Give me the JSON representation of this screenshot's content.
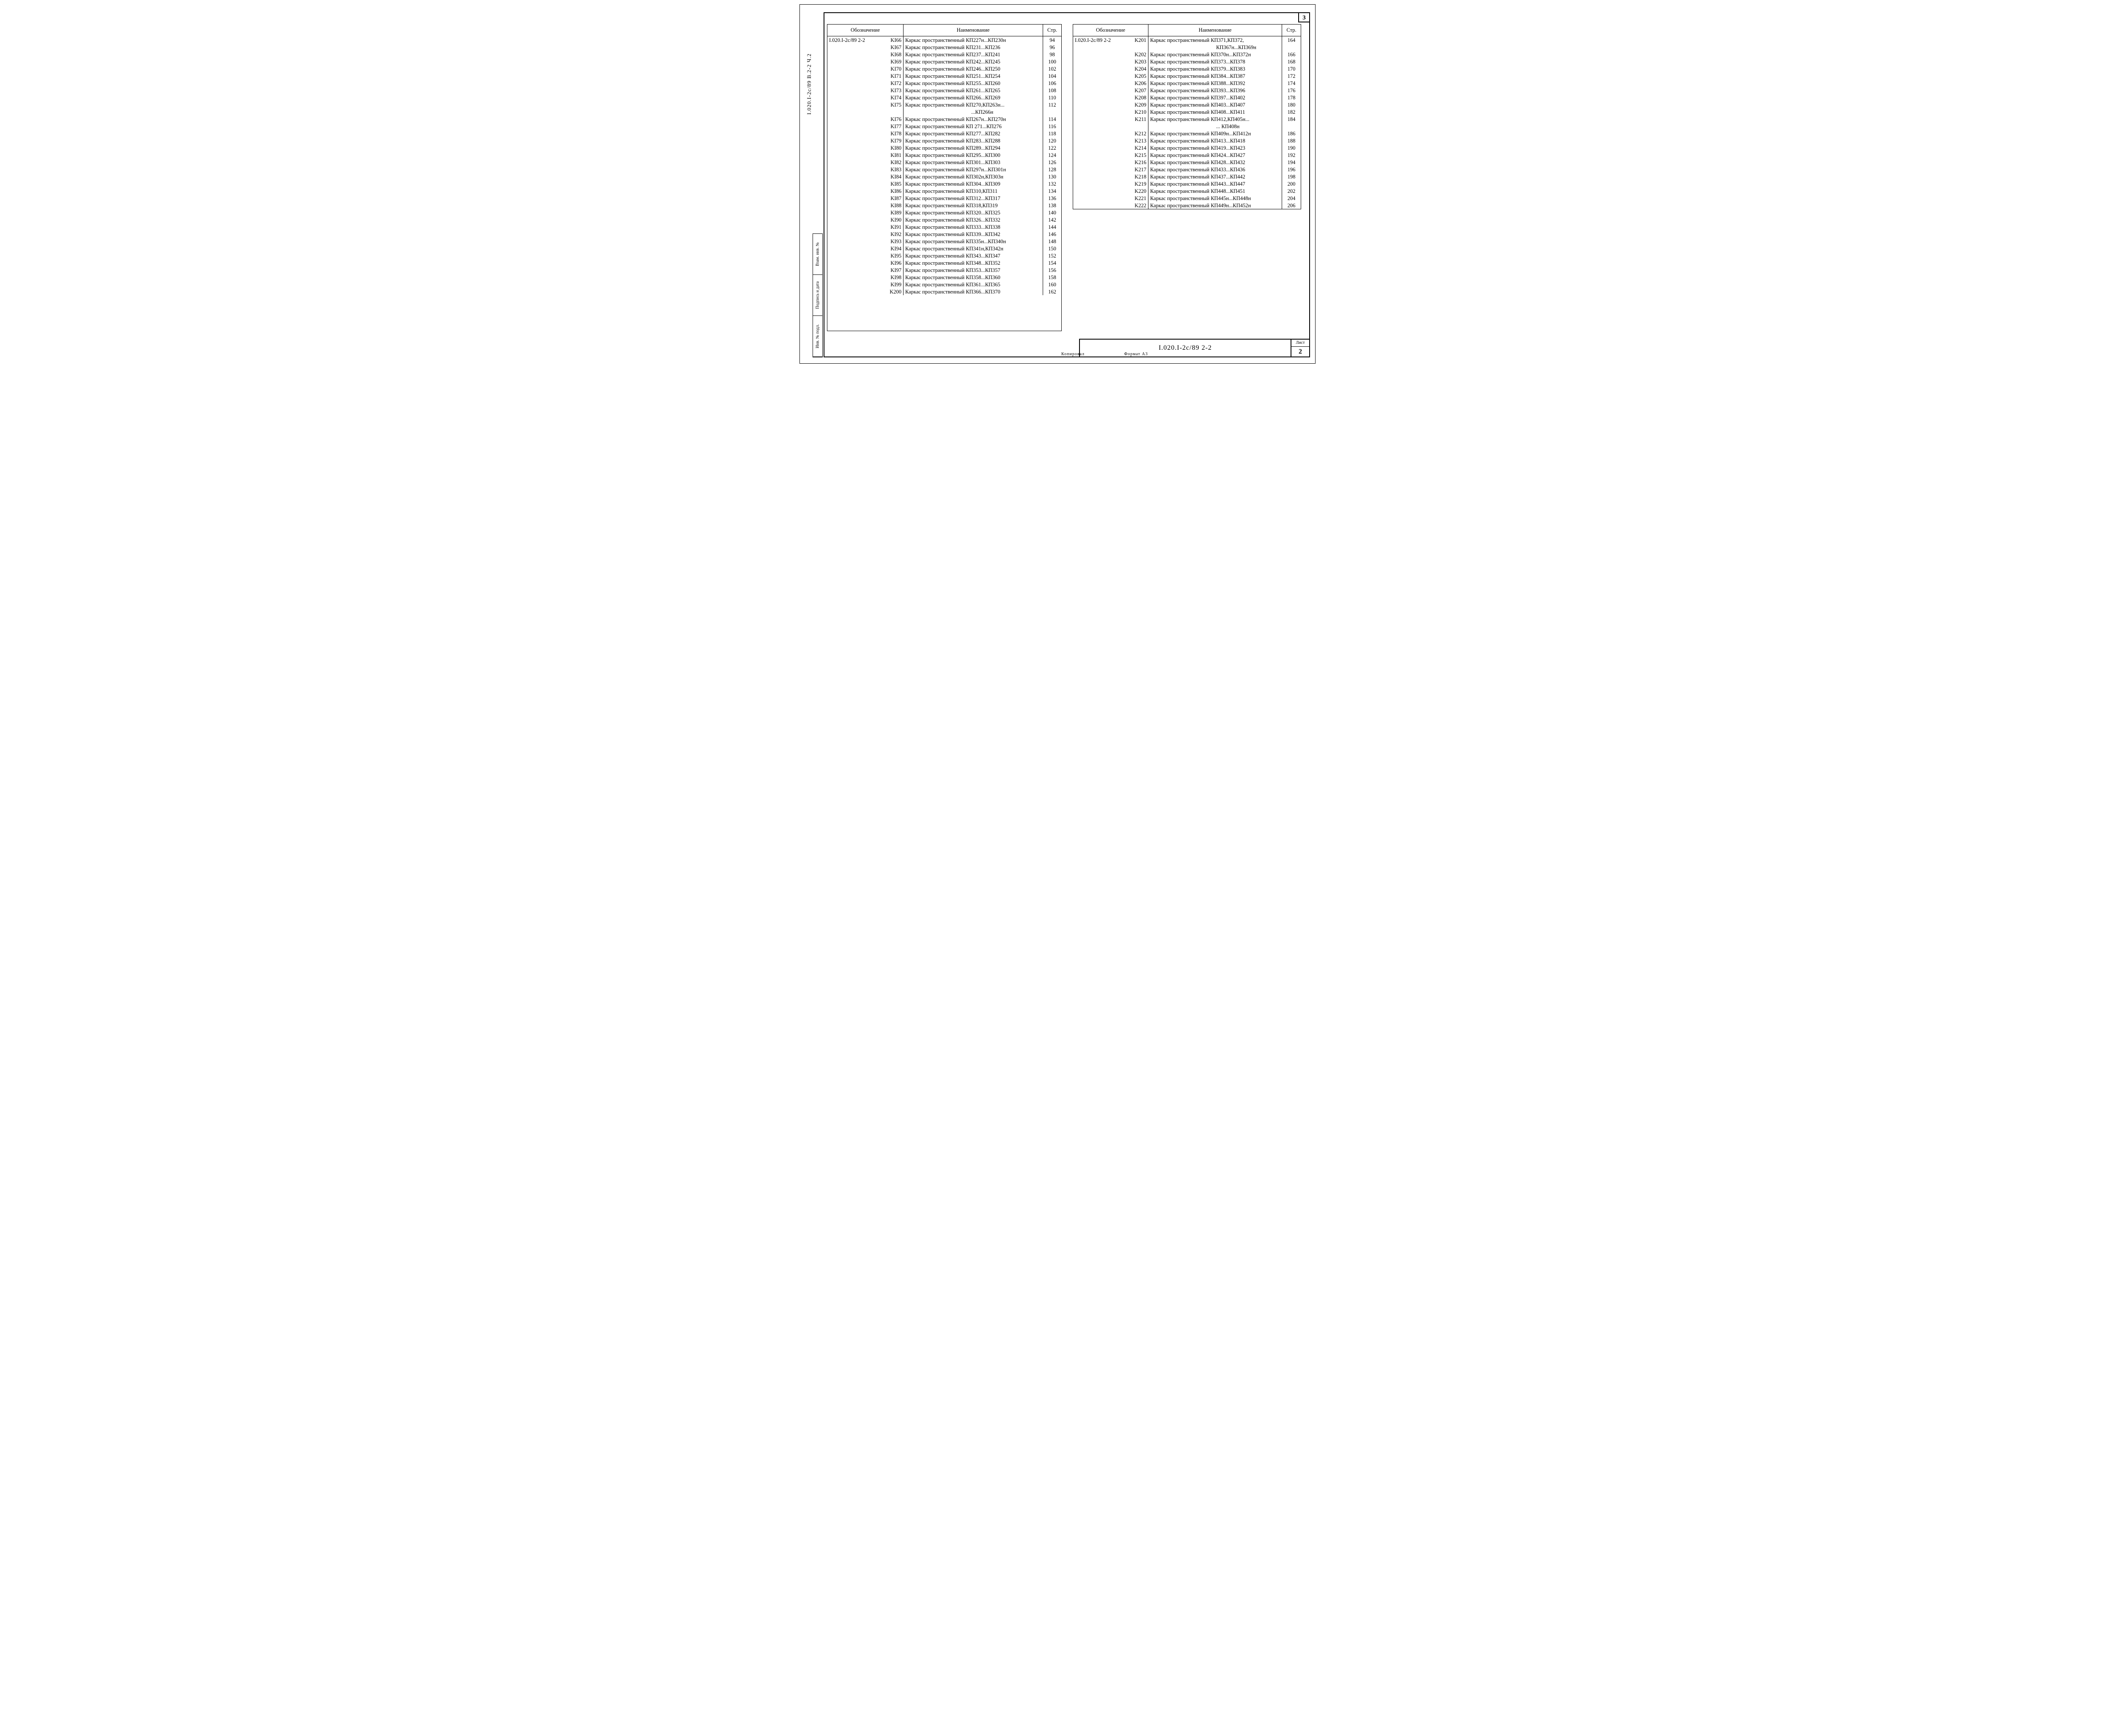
{
  "corner_page": "3",
  "side_label": "I.020.I-2с/89 В.2-2 Ч.2",
  "stamps": [
    "Взам. инв. №",
    "Подпись и дата",
    "Инв. № подл."
  ],
  "headers": {
    "des": "Обозначение",
    "name": "Наименование",
    "page": "Стр."
  },
  "series_prefix": "I.020.I-2с/89 2-2",
  "left_rows": [
    {
      "code": "KI66",
      "name": "Каркас пространственный КП227н...КП230н",
      "page": "94"
    },
    {
      "code": "KI67",
      "name": "Каркас пространственный КП231...КП236",
      "page": "96"
    },
    {
      "code": "KI68",
      "name": "Каркас пространственный КП237...КП241",
      "page": "98"
    },
    {
      "code": "KI69",
      "name": "Каркас пространственный КП242...КП245",
      "page": "100"
    },
    {
      "code": "KI70",
      "name": "Каркас пространственный КП246...КП250",
      "page": "102"
    },
    {
      "code": "KI71",
      "name": "Каркас пространственный КП251...КП254",
      "page": "104"
    },
    {
      "code": "KI72",
      "name": "Каркас пространственный КП255...КП260",
      "page": "106"
    },
    {
      "code": "KI73",
      "name": "Каркас пространственный КП261...КП265",
      "page": "108"
    },
    {
      "code": "KI74",
      "name": "Каркас пространственный КП266...КП269",
      "page": "110"
    },
    {
      "code": "KI75",
      "name": "Каркас пространственный КП270,КП263н...",
      "page": "112"
    },
    {
      "code": "",
      "name": "...КП266н",
      "page": "",
      "cont": true
    },
    {
      "code": "KI76",
      "name": "Каркас пространственный КП267н...КП270н",
      "page": "114"
    },
    {
      "code": "KI77",
      "name": "Каркас пространственный КП 271...КП276",
      "page": "116"
    },
    {
      "code": "KI78",
      "name": "Каркас пространственный КП277...КП282",
      "page": "118"
    },
    {
      "code": "KI79",
      "name": "Каркас пространственный КП283...КП288",
      "page": "120"
    },
    {
      "code": "KI80",
      "name": "Каркас пространственный КП289...КП294",
      "page": "122"
    },
    {
      "code": "KI81",
      "name": "Каркас пространственный КП295...КП300",
      "page": "124"
    },
    {
      "code": "KI82",
      "name": "Каркас пространственный КП301...КП303",
      "page": "126"
    },
    {
      "code": "KI83",
      "name": "Каркас пространственный КП297н...КП301н",
      "page": "128"
    },
    {
      "code": "KI84",
      "name": "Каркас пространственный КП302н,КП303н",
      "page": "130"
    },
    {
      "code": "KI85",
      "name": "Каркас пространственный КП304...КП309",
      "page": "132"
    },
    {
      "code": "KI86",
      "name": "Каркас пространственный КП310,КП311",
      "page": "134"
    },
    {
      "code": "KI87",
      "name": "Каркас  пространственный КП312...КП317",
      "page": "136"
    },
    {
      "code": "KI88",
      "name": "Каркас пространственный КП318,КП319",
      "page": "138"
    },
    {
      "code": "KI89",
      "name": "Каркас пространственный КП320...КП325",
      "page": "140"
    },
    {
      "code": "KI90",
      "name": "Каркас пространственный КП326...КП332",
      "page": "142"
    },
    {
      "code": "KI91",
      "name": "Каркас  пространственный КП333...КП338",
      "page": "144"
    },
    {
      "code": "KI92",
      "name": "Каркас пространственный КП339...КП342",
      "page": "146"
    },
    {
      "code": "KI93",
      "name": "Каркас пространственный КП335н...КП340н",
      "page": "148"
    },
    {
      "code": "KI94",
      "name": "Каркас пространственный КП341н,КП342н",
      "page": "150"
    },
    {
      "code": "KI95",
      "name": "Каркас пространственный КП343...КП347",
      "page": "152"
    },
    {
      "code": "KI96",
      "name": "Каркас пространственный КП348...КП352",
      "page": "154"
    },
    {
      "code": "KI97",
      "name": "Каркас пространственный КП353...КП357",
      "page": "156"
    },
    {
      "code": "KI98",
      "name": "Каркас пространственный КП358...КП360",
      "page": "158"
    },
    {
      "code": "KI99",
      "name": "Каркас пространственный КП361...КП365",
      "page": "160"
    },
    {
      "code": "K200",
      "name": "Каркас пространственный КП366...КП370",
      "page": "162"
    }
  ],
  "right_rows": [
    {
      "code": "K201",
      "name": "Каркас пространственный КП371,КП372,",
      "page": "164"
    },
    {
      "code": "",
      "name": "КП367н...КП369н",
      "page": "",
      "cont": true
    },
    {
      "code": "K202",
      "name": "Каркас пространственный КП370н...КП372н",
      "page": "166"
    },
    {
      "code": "K203",
      "name": "Каркас пространственный КП373...КП378",
      "page": "168"
    },
    {
      "code": "K204",
      "name": "Каркас пространственный КП379...КП383",
      "page": "170"
    },
    {
      "code": "K205",
      "name": "Каркас пространственный КП384...КП387",
      "page": "172"
    },
    {
      "code": "K206",
      "name": "Каркас пространственный КП388...КП392",
      "page": "174"
    },
    {
      "code": "K207",
      "name": "Каркас пространственный КП393...КП396",
      "page": "176"
    },
    {
      "code": "K208",
      "name": "Каркас пространственный КП397...КП402",
      "page": "178"
    },
    {
      "code": "K209",
      "name": "Каркас пространственный КП403...КП407",
      "page": "180"
    },
    {
      "code": "K210",
      "name": "Каркас пространственный КП408...КП411",
      "page": "182"
    },
    {
      "code": "K211",
      "name": "Каркас пространственный КП412,КП405н...",
      "page": "184"
    },
    {
      "code": "",
      "name": "... КП408н",
      "page": "",
      "cont": true
    },
    {
      "code": "K212",
      "name": "Каркас пространственный КП409н...КП412н",
      "page": "186"
    },
    {
      "code": "K213",
      "name": "Каркас пространственный КП413...КП418",
      "page": "188"
    },
    {
      "code": "K214",
      "name": "Каркас пространственный КП419...КП423",
      "page": "190"
    },
    {
      "code": "K215",
      "name": "Каркас пространственный КП424...КП427",
      "page": "192"
    },
    {
      "code": "K216",
      "name": "Каркас пространственный КП428...КП432",
      "page": "194"
    },
    {
      "code": "K217",
      "name": "Каркас пространственный КП433...КП436",
      "page": "196"
    },
    {
      "code": "K218",
      "name": "Каркас пространственный КП437...КП442",
      "page": "198"
    },
    {
      "code": "K219",
      "name": "Каркас пространственный КП443...КП447",
      "page": "200"
    },
    {
      "code": "K220",
      "name": "Каркас пространственный КП448...КП451",
      "page": "202"
    },
    {
      "code": "K221",
      "name": "Каркас пространственный КП445н...КП448н",
      "page": "204"
    },
    {
      "code": "K222",
      "name": "Каркас пространственный КП449н...КП452н",
      "page": "206"
    }
  ],
  "title_block": {
    "doc": "I.020.I-2с/89  2-2",
    "sheet_label": "Лист",
    "sheet_num": "2"
  },
  "footer": {
    "left": "Копировал",
    "right": "Формат A3"
  }
}
